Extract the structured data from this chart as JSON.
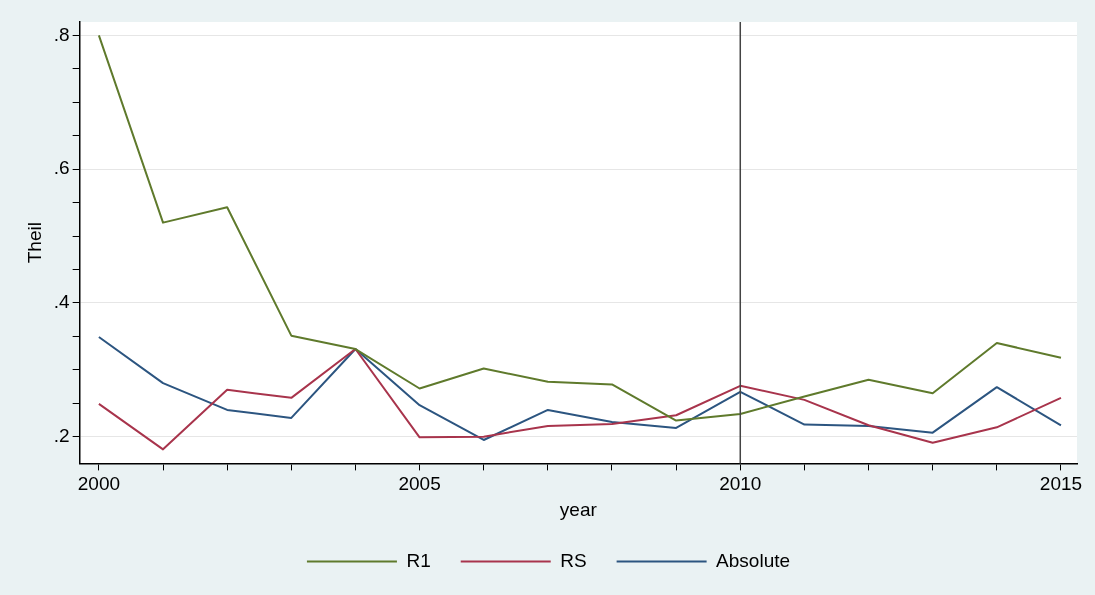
{
  "chart_data": {
    "type": "line",
    "xlabel": "year",
    "ylabel": "Theil",
    "x": [
      2000,
      2001,
      2002,
      2003,
      2004,
      2005,
      2006,
      2007,
      2008,
      2009,
      2010,
      2011,
      2012,
      2013,
      2014,
      2015
    ],
    "series": [
      {
        "name": "R1",
        "color": "#5f7a2c",
        "values": [
          0.8,
          0.52,
          0.543,
          0.351,
          0.331,
          0.272,
          0.302,
          0.282,
          0.278,
          0.224,
          0.234,
          0.26,
          0.285,
          0.265,
          0.34,
          0.318
        ]
      },
      {
        "name": "RS",
        "color": "#a8344c",
        "values": [
          0.249,
          0.181,
          0.27,
          0.258,
          0.331,
          0.199,
          0.2,
          0.216,
          0.219,
          0.232,
          0.276,
          0.255,
          0.217,
          0.191,
          0.214,
          0.258
        ]
      },
      {
        "name": "Absolute",
        "color": "#2c5580",
        "values": [
          0.349,
          0.28,
          0.24,
          0.228,
          0.331,
          0.247,
          0.195,
          0.24,
          0.222,
          0.213,
          0.267,
          0.218,
          0.216,
          0.206,
          0.274,
          0.217
        ]
      }
    ],
    "xlim": [
      1999.7,
      2015.25
    ],
    "xticks": [
      2000,
      {
        "value": 2001,
        "label": null
      },
      {
        "value": 2002,
        "label": null
      },
      {
        "value": 2003,
        "label": null
      },
      {
        "value": 2004,
        "label": null
      },
      2005,
      {
        "value": 2006,
        "label": null
      },
      {
        "value": 2007,
        "label": null
      },
      {
        "value": 2008,
        "label": null
      },
      {
        "value": 2009,
        "label": null
      },
      2010,
      {
        "value": 2011,
        "label": null
      },
      {
        "value": 2012,
        "label": null
      },
      {
        "value": 2013,
        "label": null
      },
      {
        "value": 2014,
        "label": null
      },
      2015
    ],
    "ylim": [
      0.16,
      0.82
    ],
    "yticks": [
      {
        "value": 0.2,
        "label": ".2"
      },
      {
        "value": 0.25,
        "label": null
      },
      {
        "value": 0.3,
        "label": null
      },
      {
        "value": 0.35,
        "label": null
      },
      {
        "value": 0.4,
        "label": ".4"
      },
      {
        "value": 0.45,
        "label": null
      },
      {
        "value": 0.5,
        "label": null
      },
      {
        "value": 0.55,
        "label": null
      },
      {
        "value": 0.6,
        "label": ".6"
      },
      {
        "value": 0.65,
        "label": null
      },
      {
        "value": 0.7,
        "label": null
      },
      {
        "value": 0.75,
        "label": null
      },
      {
        "value": 0.8,
        "label": ".8"
      }
    ],
    "ref_lines": [
      {
        "axis": "x",
        "value": 2010,
        "color": "#444444"
      }
    ],
    "grid": "y",
    "legend": "bottom",
    "marker": "none",
    "line_style": "solid"
  }
}
